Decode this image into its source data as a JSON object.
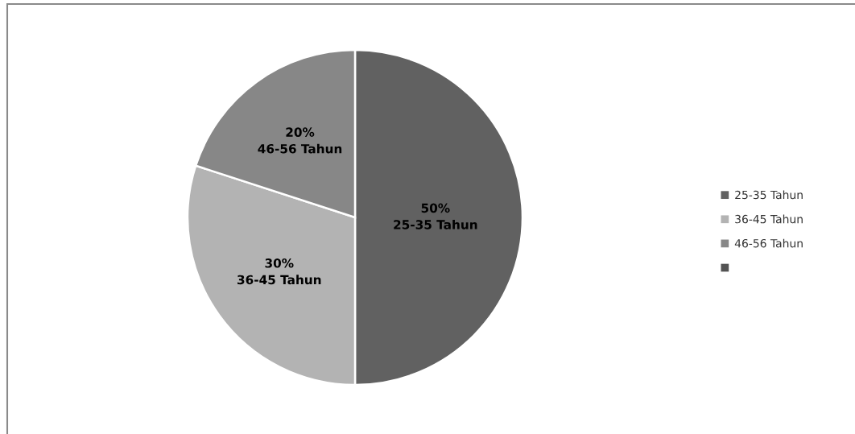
{
  "chart_data": {
    "type": "pie",
    "categories": [
      "25-35 Tahun",
      "36-45 Tahun",
      "46-56 Tahun",
      null
    ],
    "values": [
      50,
      30,
      20,
      0
    ],
    "colors": [
      "#616161",
      "#b3b3b3",
      "#878787",
      "#535353"
    ],
    "value_labels": [
      "50%",
      "30%",
      "20%",
      null
    ],
    "legend": "right"
  }
}
